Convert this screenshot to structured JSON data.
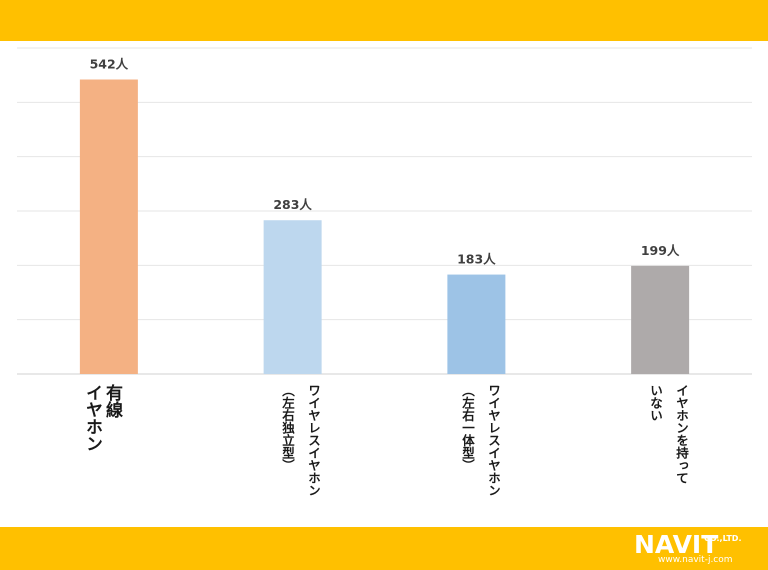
{
  "chart_data": {
    "type": "bar",
    "categories": [
      "有線\nイヤホン",
      "ワイヤレスイヤホン\n（左右独立型）",
      "ワイヤレスイヤホン\n（左右一体型）",
      "イヤホンを持って\nいない"
    ],
    "values": [
      542,
      283,
      183,
      199
    ],
    "value_labels": [
      "542人",
      "283人",
      "183人",
      "199人"
    ],
    "colors": [
      "#F4B183",
      "#BDD7EE",
      "#9DC3E6",
      "#AEAAAA"
    ],
    "unit": "人",
    "ylim": [
      0,
      600
    ],
    "grid": true,
    "title": "",
    "xlabel": "",
    "ylabel": ""
  },
  "branding": {
    "logo_text": "NAVIT",
    "logo_suffix": "CO.,LTD.",
    "logo_url": "www.navit-j.com",
    "band_color": "#FFC000"
  }
}
